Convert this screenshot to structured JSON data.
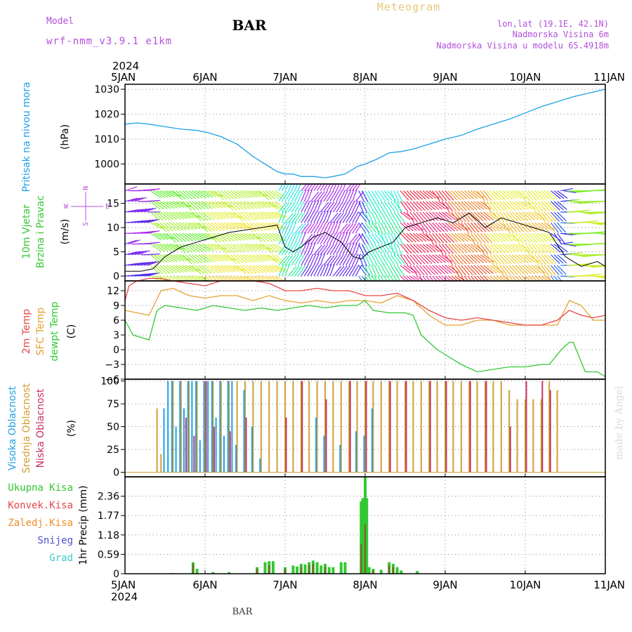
{
  "header": {
    "model_label": "Model",
    "model_name": "wrf-nmm_v3.9.1 e1km",
    "station": "BAR",
    "product": "Meteogram",
    "coords": "lon,lat (19.1E, 42.1N)",
    "elevation": "Nadmorska Visina 6m",
    "model_elevation": "Nadmorska Visina u modelu 65.4918m",
    "footer_station": "BAR",
    "credit": "made by Angel"
  },
  "colors": {
    "pressure": "#1ea0e6",
    "wind_speed": "#000000",
    "t2m": "#e64646",
    "sfc": "#e6a032",
    "dewpt": "#32c832",
    "cloud_high": "#1ea0e6",
    "cloud_mid": "#d2a032",
    "cloud_low": "#c8325a",
    "precip_total": "#32c832",
    "precip_conv": "#e64646",
    "precip_frz": "#f08c28",
    "precip_snow": "#5050d2",
    "precip_hail": "#3cc8c8",
    "wind_label_purple": "#b450dc"
  },
  "time_axis": {
    "year": "2024",
    "ticks": [
      "5JAN",
      "6JAN",
      "7JAN",
      "8JAN",
      "9JAN",
      "10JAN",
      "11JAN"
    ],
    "start_day": 5,
    "end_day": 11
  },
  "chart_data": [
    {
      "type": "line",
      "panel": "pressure",
      "ylabel_left": "Pritisak na nivou mora",
      "ylabel_unit": "(hPa)",
      "ylim": [
        992,
        1032
      ],
      "yticks": [
        1000,
        1010,
        1020,
        1030
      ],
      "grid": true,
      "series": [
        {
          "name": "Pritisak na nivou mora",
          "x": [
            5.0,
            5.15,
            5.3,
            5.5,
            5.7,
            5.9,
            6.05,
            6.2,
            6.4,
            6.6,
            6.8,
            6.9,
            7.0,
            7.1,
            7.2,
            7.35,
            7.5,
            7.6,
            7.75,
            7.9,
            8.0,
            8.15,
            8.3,
            8.45,
            8.6,
            8.8,
            9.0,
            9.2,
            9.4,
            9.6,
            9.8,
            10.0,
            10.2,
            10.4,
            10.6,
            10.8,
            11.0
          ],
          "y": [
            1016,
            1016.5,
            1016,
            1015,
            1014,
            1013.5,
            1012.5,
            1011,
            1008,
            1003,
            999,
            997,
            996,
            996,
            995,
            995,
            994.5,
            995,
            996,
            999,
            1000,
            1002,
            1004.5,
            1005,
            1006,
            1008,
            1010,
            1011.5,
            1014,
            1016,
            1018,
            1020.5,
            1023,
            1025,
            1027,
            1028.5,
            1030
          ]
        }
      ]
    },
    {
      "type": "line",
      "panel": "wind",
      "ylabel_left": [
        "10m Vjetar",
        "Brzina i Pravac"
      ],
      "ylabel_unit": "(m/s)",
      "compass": {
        "n": "N",
        "e": "E",
        "w": "W",
        "s": "S"
      },
      "ylim": [
        -1,
        19
      ],
      "yticks": [
        0,
        5,
        10,
        15
      ],
      "grid": true,
      "series": [
        {
          "name": "10m wind speed",
          "x": [
            5.0,
            5.2,
            5.35,
            5.5,
            5.7,
            5.9,
            6.1,
            6.3,
            6.5,
            6.7,
            6.9,
            7.0,
            7.1,
            7.2,
            7.35,
            7.5,
            7.7,
            7.85,
            7.95,
            8.05,
            8.2,
            8.35,
            8.5,
            8.7,
            8.9,
            9.1,
            9.3,
            9.5,
            9.7,
            9.9,
            10.1,
            10.3,
            10.5,
            10.7,
            10.9,
            11.0
          ],
          "y": [
            1,
            1,
            1.5,
            4,
            6,
            7,
            8,
            9,
            9.5,
            10,
            10.5,
            6,
            5,
            6,
            8,
            9,
            7,
            4,
            3.5,
            5,
            6,
            7,
            10,
            11,
            12,
            11,
            13,
            10,
            12,
            11,
            10,
            9,
            4,
            2,
            3,
            2
          ]
        }
      ]
    },
    {
      "type": "line",
      "panel": "temperature",
      "ylabel_left": [
        "2m Temp",
        "SFC Temp",
        "dewpt Temp"
      ],
      "ylabel_unit": "(C)",
      "ylim": [
        -6,
        14
      ],
      "yticks": [
        -6,
        -3,
        0,
        3,
        6,
        9,
        12
      ],
      "grid": true,
      "series": [
        {
          "name": "2m Temp",
          "x": [
            5.0,
            5.05,
            5.15,
            5.3,
            5.45,
            5.6,
            5.8,
            6.0,
            6.2,
            6.4,
            6.6,
            6.8,
            7.0,
            7.2,
            7.4,
            7.6,
            7.8,
            8.0,
            8.2,
            8.4,
            8.6,
            8.8,
            9.0,
            9.2,
            9.4,
            9.6,
            9.8,
            10.0,
            10.2,
            10.4,
            10.55,
            10.7,
            10.85,
            11.0
          ],
          "y": [
            10,
            13,
            14,
            14.5,
            14.5,
            14,
            13.5,
            13,
            14,
            14,
            14,
            13.5,
            12,
            12,
            12.5,
            12,
            12,
            11,
            11,
            11.5,
            10,
            8,
            6.5,
            6,
            6.5,
            6,
            5.5,
            5,
            5,
            6,
            8,
            7,
            6.5,
            7
          ]
        },
        {
          "name": "SFC Temp",
          "x": [
            5.0,
            5.15,
            5.3,
            5.45,
            5.6,
            5.8,
            6.0,
            6.2,
            6.4,
            6.6,
            6.8,
            7.0,
            7.2,
            7.4,
            7.6,
            7.8,
            8.0,
            8.2,
            8.4,
            8.6,
            8.8,
            9.0,
            9.2,
            9.4,
            9.6,
            9.8,
            10.0,
            10.2,
            10.4,
            10.55,
            10.7,
            10.85,
            11.0
          ],
          "y": [
            8,
            7.5,
            7,
            12,
            12.5,
            11,
            10.5,
            11,
            11,
            10,
            11,
            10,
            9.5,
            10,
            9.5,
            10,
            10,
            9.5,
            11,
            10,
            7,
            5,
            5,
            6,
            6,
            5,
            5,
            5,
            5,
            10,
            9,
            6,
            6
          ]
        },
        {
          "name": "dewpt Temp",
          "x": [
            5.0,
            5.1,
            5.2,
            5.3,
            5.4,
            5.5,
            5.7,
            5.9,
            6.1,
            6.3,
            6.5,
            6.7,
            6.9,
            7.1,
            7.3,
            7.5,
            7.7,
            7.9,
            8.0,
            8.1,
            8.3,
            8.5,
            8.6,
            8.7,
            8.9,
            9.0,
            9.2,
            9.4,
            9.6,
            9.8,
            10.0,
            10.2,
            10.3,
            10.45,
            10.55,
            10.6,
            10.75,
            10.9,
            11.0
          ],
          "y": [
            6,
            3,
            2.5,
            2,
            8,
            9,
            8.5,
            8,
            9,
            8.5,
            8,
            8.5,
            8,
            8.5,
            9,
            8.5,
            9,
            9,
            10,
            8,
            7.5,
            7.5,
            7,
            3,
            0,
            -1,
            -3,
            -4.5,
            -4,
            -3.5,
            -3.5,
            -3,
            -3,
            0,
            1.5,
            1.5,
            -4.5,
            -4.5,
            -5.5
          ]
        }
      ]
    },
    {
      "type": "bar",
      "panel": "cloud",
      "ylabel_left": [
        "Visoka Oblacnost",
        "Srednja Oblacnost",
        "Niska Oblacnost"
      ],
      "ylabel_unit": "(%)",
      "ylim": [
        -5,
        102
      ],
      "yticks": [
        0,
        25,
        50,
        75,
        100
      ],
      "grid": true,
      "series": [
        {
          "name": "Visoka Oblacnost",
          "x": [
            5.5,
            5.55,
            5.6,
            5.65,
            5.7,
            5.75,
            5.8,
            5.85,
            5.9,
            5.95,
            6.0,
            6.05,
            6.1,
            6.15,
            6.2,
            6.25,
            6.3,
            6.35,
            6.4,
            6.5,
            6.6,
            6.7,
            7.4,
            7.5,
            7.7,
            7.9,
            8.0,
            8.1
          ],
          "y": [
            70,
            100,
            100,
            50,
            100,
            70,
            100,
            100,
            100,
            35,
            100,
            100,
            100,
            60,
            100,
            40,
            100,
            100,
            30,
            90,
            50,
            15,
            60,
            40,
            30,
            45,
            40,
            70
          ]
        },
        {
          "name": "Srednja Oblacnost",
          "x": [
            5.4,
            5.45,
            5.6,
            5.7,
            5.8,
            5.9,
            6.0,
            6.1,
            6.2,
            6.3,
            6.4,
            6.5,
            6.6,
            6.7,
            6.8,
            6.9,
            7.0,
            7.1,
            7.2,
            7.3,
            7.4,
            7.5,
            7.6,
            7.7,
            7.8,
            7.9,
            8.0,
            8.1,
            8.2,
            8.3,
            8.4,
            8.5,
            8.6,
            8.7,
            8.8,
            8.9,
            9.0,
            9.1,
            9.2,
            9.3,
            9.4,
            9.5,
            9.6,
            9.7,
            9.8,
            9.9,
            10.0,
            10.1,
            10.2,
            10.3,
            10.4
          ],
          "y": [
            70,
            20,
            100,
            100,
            100,
            100,
            100,
            100,
            100,
            100,
            100,
            100,
            100,
            100,
            100,
            100,
            100,
            100,
            100,
            100,
            100,
            100,
            100,
            100,
            100,
            100,
            100,
            100,
            100,
            100,
            100,
            100,
            100,
            100,
            100,
            100,
            100,
            100,
            100,
            100,
            100,
            100,
            100,
            100,
            90,
            80,
            80,
            80,
            80,
            100,
            90
          ]
        },
        {
          "name": "Niska Oblacnost",
          "x": [
            5.75,
            5.85,
            6.0,
            6.1,
            6.3,
            6.5,
            7.0,
            7.2,
            7.5,
            7.8,
            8.0,
            8.3,
            8.5,
            8.8,
            9.0,
            9.3,
            9.5,
            9.8,
            10.0,
            10.2,
            10.3
          ],
          "y": [
            60,
            40,
            100,
            50,
            45,
            60,
            60,
            100,
            80,
            100,
            100,
            100,
            100,
            100,
            100,
            100,
            100,
            50,
            100,
            100,
            90
          ]
        }
      ]
    },
    {
      "type": "bar",
      "panel": "precip",
      "legend": [
        "Ukupna Kisa",
        "Konvek.Kisa",
        "Zaledj.Kisa",
        "Snijeg",
        "Grad"
      ],
      "ylabel_unit": "1hr Precip (mm)",
      "ylim": [
        0,
        2.95
      ],
      "yticks": [
        0,
        0.59,
        1.18,
        1.77,
        2.36
      ],
      "ytick_labels": [
        "0",
        "0.59",
        "1.18",
        "1.77",
        "2.36"
      ],
      "grid": true,
      "series": [
        {
          "name": "Ukupna Kisa",
          "x": [
            5.6,
            5.85,
            5.9,
            6.1,
            6.3,
            6.65,
            6.75,
            6.8,
            6.85,
            7.0,
            7.1,
            7.15,
            7.2,
            7.25,
            7.3,
            7.35,
            7.4,
            7.45,
            7.5,
            7.55,
            7.6,
            7.7,
            7.75,
            7.95,
            7.97,
            8.0,
            8.02,
            8.05,
            8.1,
            8.2,
            8.3,
            8.35,
            8.4,
            8.45,
            8.65
          ],
          "y": [
            0.02,
            0.35,
            0.15,
            0.05,
            0.05,
            0.2,
            0.35,
            0.38,
            0.38,
            0.2,
            0.25,
            0.22,
            0.3,
            0.28,
            0.35,
            0.4,
            0.35,
            0.25,
            0.3,
            0.2,
            0.2,
            0.35,
            0.35,
            2.2,
            2.3,
            2.95,
            2.3,
            0.2,
            0.15,
            0.12,
            0.35,
            0.3,
            0.2,
            0.1,
            0.08
          ]
        },
        {
          "name": "Konvek.Kisa",
          "x": [
            5.85,
            6.65,
            6.8,
            7.0,
            7.2,
            7.3,
            7.35,
            7.5,
            7.95,
            8.0,
            8.1,
            8.3,
            8.35
          ],
          "y": [
            0.3,
            0.15,
            0.25,
            0.15,
            0.2,
            0.25,
            0.3,
            0.2,
            0.9,
            1.5,
            0.1,
            0.25,
            0.2
          ]
        }
      ]
    }
  ]
}
